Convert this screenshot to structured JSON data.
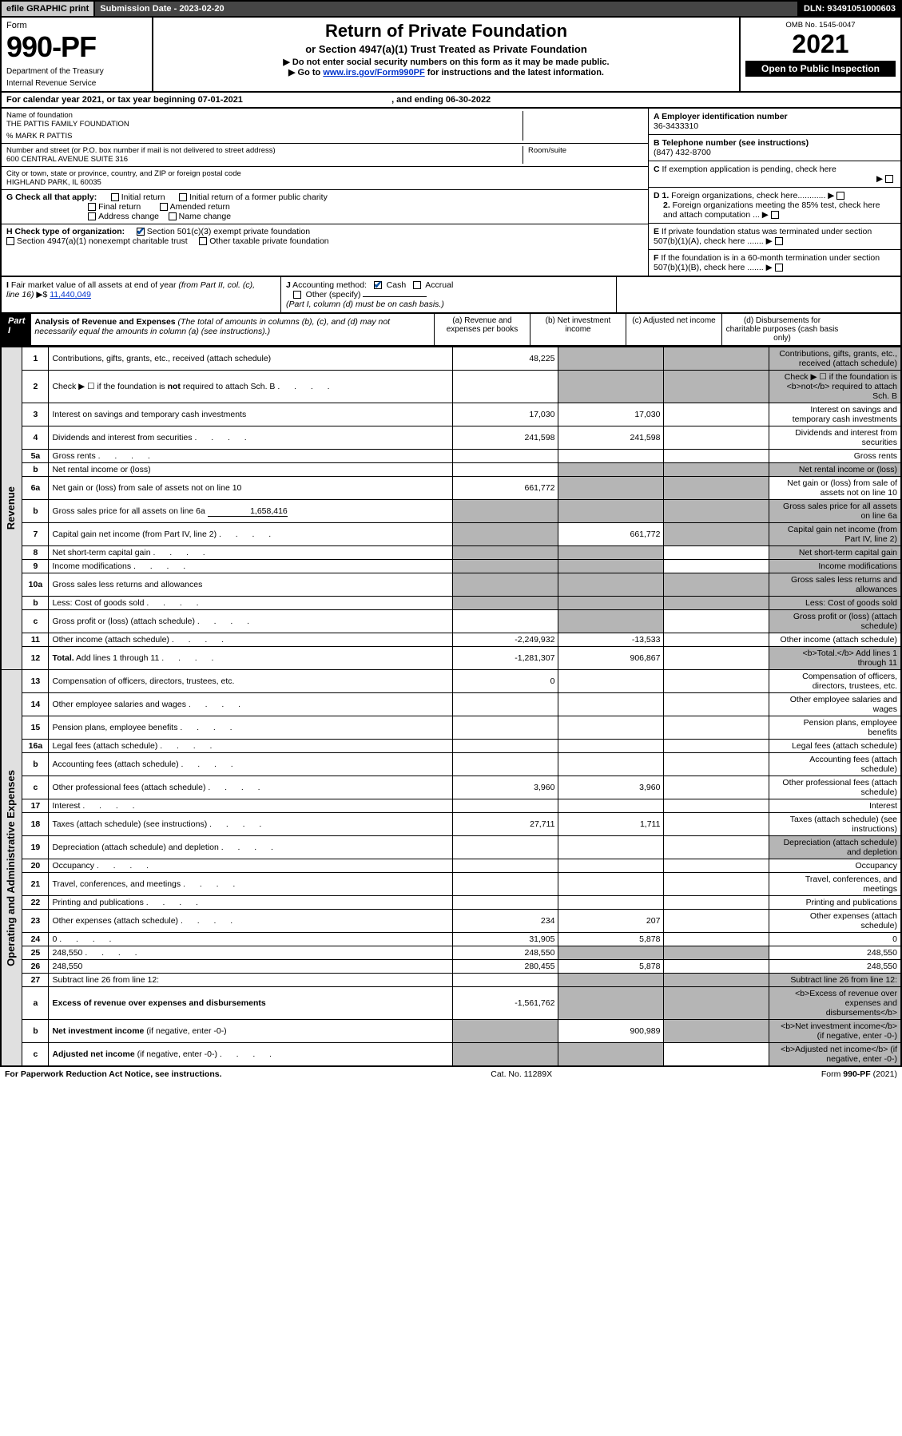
{
  "topbar": {
    "efile": "efile GRAPHIC print",
    "submission": "Submission Date - 2023-02-20",
    "dln": "DLN: 93491051000603"
  },
  "header": {
    "form_label": "Form",
    "form_no": "990-PF",
    "dept": "Department of the Treasury",
    "irs": "Internal Revenue Service",
    "title": "Return of Private Foundation",
    "subtitle": "or Section 4947(a)(1) Trust Treated as Private Foundation",
    "note1": "▶ Do not enter social security numbers on this form as it may be made public.",
    "note2_pre": "▶ Go to ",
    "note2_link": "www.irs.gov/Form990PF",
    "note2_post": " for instructions and the latest information.",
    "omb": "OMB No. 1545-0047",
    "year": "2021",
    "open": "Open to Public Inspection"
  },
  "cal": {
    "pre": "For calendar year 2021, or tax year beginning ",
    "begin": "07-01-2021",
    "mid": " , and ending ",
    "end": "06-30-2022"
  },
  "info": {
    "name_lbl": "Name of foundation",
    "name": "THE PATTIS FAMILY FOUNDATION",
    "co": "% MARK R PATTIS",
    "addr_lbl": "Number and street (or P.O. box number if mail is not delivered to street address)",
    "addr": "600 CENTRAL AVENUE SUITE 316",
    "room_lbl": "Room/suite",
    "city_lbl": "City or town, state or province, country, and ZIP or foreign postal code",
    "city": "HIGHLAND PARK, IL  60035",
    "A_lbl": "A Employer identification number",
    "A_val": "36-3433310",
    "B_lbl": "B Telephone number (see instructions)",
    "B_val": "(847) 432-8700",
    "C_lbl": "C If exemption application is pending, check here",
    "D1": "D 1. Foreign organizations, check here............",
    "D2": "2. Foreign organizations meeting the 85% test, check here and attach computation ...",
    "E": "E  If private foundation status was terminated under section 507(b)(1)(A), check here .......",
    "F": "F  If the foundation is in a 60-month termination under section 507(b)(1)(B), check here .......",
    "G_lbl": "G Check all that apply:",
    "G_opts": [
      "Initial return",
      "Final return",
      "Address change",
      "Initial return of a former public charity",
      "Amended return",
      "Name change"
    ],
    "H_lbl": "H Check type of organization:",
    "H_opts": [
      "Section 501(c)(3) exempt private foundation",
      "Section 4947(a)(1) nonexempt charitable trust",
      "Other taxable private foundation"
    ],
    "I_lbl": "I Fair market value of all assets at end of year (from Part II, col. (c),",
    "I_line": "line 16) ▶$ ",
    "I_val": "11,440,049",
    "J_lbl": "J Accounting method:",
    "J_opts": [
      "Cash",
      "Accrual",
      "Other (specify)"
    ],
    "J_note": "(Part I, column (d) must be on cash basis.)"
  },
  "part1": {
    "label": "Part I",
    "title": "Analysis of Revenue and Expenses",
    "title_note": " (The total of amounts in columns (b), (c), and (d) may not necessarily equal the amounts in column (a) (see instructions).)",
    "col_a": "(a)   Revenue and expenses per books",
    "col_b": "(b)   Net investment income",
    "col_c": "(c)   Adjusted net income",
    "col_d": "(d)   Disbursements for charitable purposes (cash basis only)",
    "side_rev": "Revenue",
    "side_ops": "Operating and Administrative Expenses"
  },
  "rows": [
    {
      "n": "1",
      "d": "Contributions, gifts, grants, etc., received (attach schedule)",
      "a": "48,225",
      "bsh": 1,
      "csh": 1,
      "dsh": 1
    },
    {
      "n": "2",
      "d": "Check ▶ ☐ if the foundation is <b>not</b> required to attach Sch. B",
      "dots": 1,
      "bsh": 1,
      "csh": 1,
      "dsh": 1
    },
    {
      "n": "3",
      "d": "Interest on savings and temporary cash investments",
      "a": "17,030",
      "b": "17,030"
    },
    {
      "n": "4",
      "d": "Dividends and interest from securities",
      "dots": 1,
      "a": "241,598",
      "b": "241,598"
    },
    {
      "n": "5a",
      "d": "Gross rents",
      "dots": 1
    },
    {
      "n": "b",
      "d": "Net rental income or (loss) ",
      "sub": 1,
      "ash": 0,
      "bsh": 1,
      "csh": 1,
      "dsh": 1
    },
    {
      "n": "6a",
      "d": "Net gain or (loss) from sale of assets not on line 10",
      "a": "661,772",
      "bsh": 1,
      "csh": 1
    },
    {
      "n": "b",
      "d": "Gross sales price for all assets on line 6a",
      "subval": "1,658,416",
      "ash": 1,
      "bsh": 1,
      "csh": 1,
      "dsh": 1
    },
    {
      "n": "7",
      "d": "Capital gain net income (from Part IV, line 2)",
      "dots": 1,
      "ash": 1,
      "b": "661,772",
      "csh": 1,
      "dsh": 1
    },
    {
      "n": "8",
      "d": "Net short-term capital gain",
      "dots": 1,
      "ash": 1,
      "bsh": 1,
      "dsh": 1
    },
    {
      "n": "9",
      "d": "Income modifications",
      "dots": 1,
      "ash": 1,
      "bsh": 1,
      "dsh": 1
    },
    {
      "n": "10a",
      "d": "Gross sales less returns and allowances",
      "sub": 1,
      "ash": 1,
      "bsh": 1,
      "csh": 1,
      "dsh": 1
    },
    {
      "n": "b",
      "d": "Less: Cost of goods sold",
      "dots": 1,
      "sub": 1,
      "ash": 1,
      "bsh": 1,
      "csh": 1,
      "dsh": 1
    },
    {
      "n": "c",
      "d": "Gross profit or (loss) (attach schedule)",
      "dots": 1,
      "ash": 0,
      "bsh": 1,
      "dsh": 1
    },
    {
      "n": "11",
      "d": "Other income (attach schedule)",
      "dots": 1,
      "a": "-2,249,932",
      "b": "-13,533"
    },
    {
      "n": "12",
      "d": "<b>Total.</b> Add lines 1 through 11",
      "dots": 1,
      "a": "-1,281,307",
      "b": "906,867",
      "dsh": 1
    },
    {
      "n": "13",
      "d": "Compensation of officers, directors, trustees, etc.",
      "a": "0"
    },
    {
      "n": "14",
      "d": "Other employee salaries and wages",
      "dots": 1
    },
    {
      "n": "15",
      "d": "Pension plans, employee benefits",
      "dots": 1
    },
    {
      "n": "16a",
      "d": "Legal fees (attach schedule)",
      "dots": 1
    },
    {
      "n": "b",
      "d": "Accounting fees (attach schedule)",
      "dots": 1
    },
    {
      "n": "c",
      "d": "Other professional fees (attach schedule)",
      "dots": 1,
      "a": "3,960",
      "b": "3,960"
    },
    {
      "n": "17",
      "d": "Interest",
      "dots": 1
    },
    {
      "n": "18",
      "d": "Taxes (attach schedule) (see instructions)",
      "dots": 1,
      "a": "27,711",
      "b": "1,711"
    },
    {
      "n": "19",
      "d": "Depreciation (attach schedule) and depletion",
      "dots": 1,
      "dsh": 1
    },
    {
      "n": "20",
      "d": "Occupancy",
      "dots": 1
    },
    {
      "n": "21",
      "d": "Travel, conferences, and meetings",
      "dots": 1
    },
    {
      "n": "22",
      "d": "Printing and publications",
      "dots": 1
    },
    {
      "n": "23",
      "d": "Other expenses (attach schedule)",
      "dots": 1,
      "a": "234",
      "b": "207"
    },
    {
      "n": "24",
      "d": "0",
      "dots": 1,
      "a": "31,905",
      "b": "5,878"
    },
    {
      "n": "25",
      "d": "248,550",
      "dots": 1,
      "a": "248,550",
      "bsh": 1,
      "csh": 1
    },
    {
      "n": "26",
      "d": "248,550",
      "a": "280,455",
      "b": "5,878"
    },
    {
      "n": "27",
      "d": "Subtract line 26 from line 12:",
      "bsh": 1,
      "csh": 1,
      "dsh": 1
    },
    {
      "n": "a",
      "d": "<b>Excess of revenue over expenses and disbursements</b>",
      "a": "-1,561,762",
      "bsh": 1,
      "csh": 1,
      "dsh": 1
    },
    {
      "n": "b",
      "d": "<b>Net investment income</b> (if negative, enter -0-)",
      "ash": 1,
      "b": "900,989",
      "csh": 1,
      "dsh": 1
    },
    {
      "n": "c",
      "d": "<b>Adjusted net income</b> (if negative, enter -0-)",
      "dots": 1,
      "ash": 1,
      "bsh": 1,
      "dsh": 1
    }
  ],
  "footer": {
    "left": "For Paperwork Reduction Act Notice, see instructions.",
    "mid": "Cat. No. 11289X",
    "right": "Form 990-PF (2021)"
  },
  "colors": {
    "topbar_gray": "#c9c9c9",
    "topbar_dark": "#454545",
    "black": "#000000",
    "shade": "#b5b5b5",
    "link": "#0033cc",
    "check": "#0a4fa0"
  }
}
